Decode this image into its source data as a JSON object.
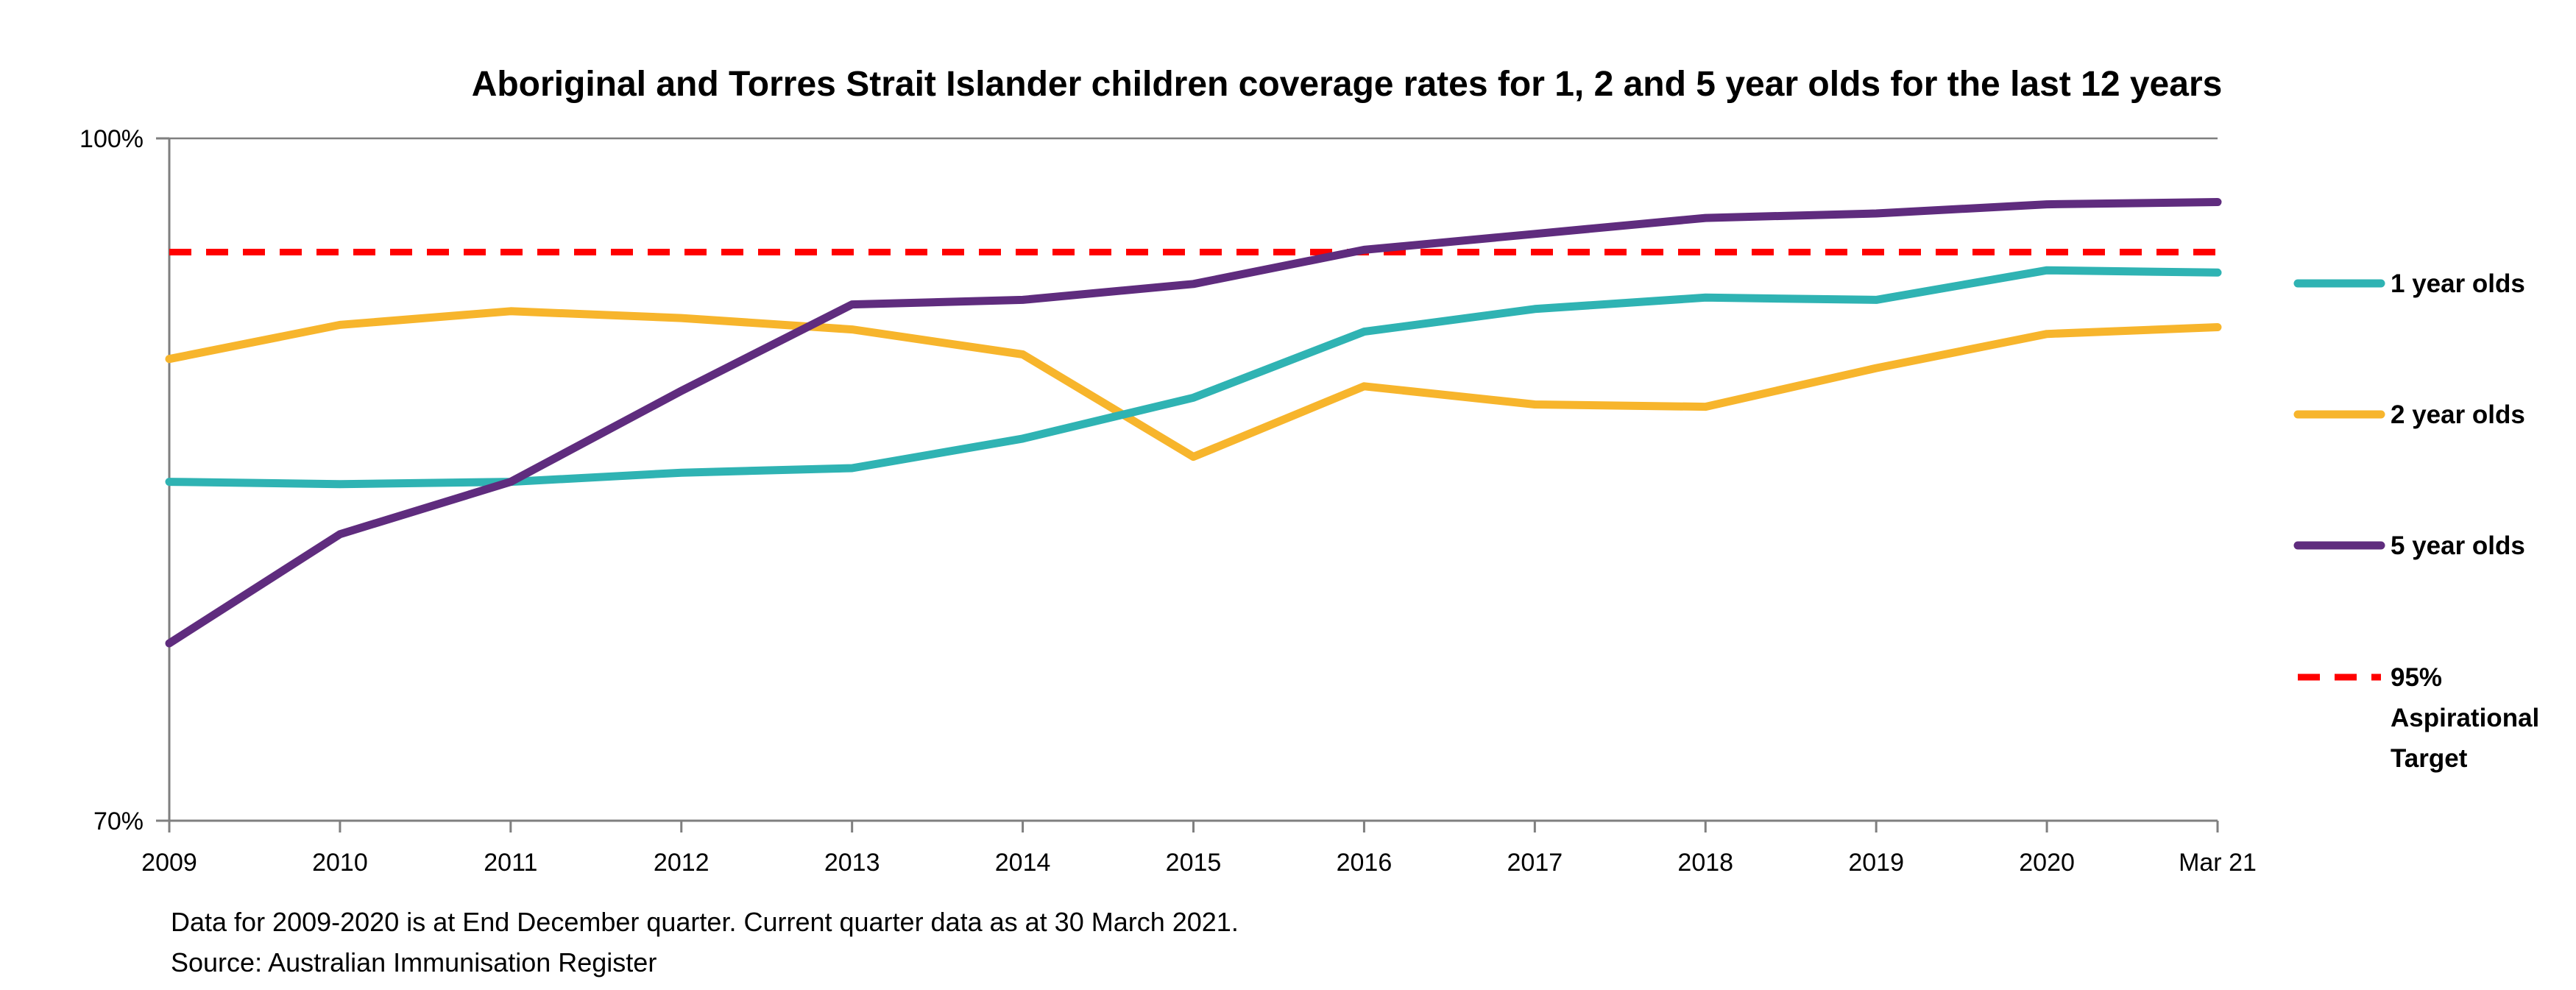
{
  "chart_data": {
    "type": "line",
    "title": "Aboriginal and Torres Strait Islander children coverage rates  for 1, 2 and 5 year olds for the last 12  years",
    "xlabel": "",
    "ylabel": "",
    "categories": [
      "2009",
      "2010",
      "2011",
      "2012",
      "2013",
      "2014",
      "2015",
      "2016",
      "2017",
      "2018",
      "2019",
      "2020",
      "Mar 21"
    ],
    "ylim": [
      70,
      100
    ],
    "y_tick_labels": [
      "100%",
      "70%"
    ],
    "grid": false,
    "legend_position": "right",
    "series": [
      {
        "name": "1 year olds",
        "color": "#2fb3b3",
        "style": "solid",
        "values": [
          84.9,
          84.8,
          84.9,
          85.3,
          85.5,
          86.8,
          88.6,
          91.5,
          92.5,
          93.0,
          92.9,
          94.2,
          94.1
        ]
      },
      {
        "name": "2 year olds",
        "color": "#f7b52c",
        "style": "solid",
        "values": [
          90.3,
          91.8,
          92.4,
          92.1,
          91.6,
          90.5,
          86.0,
          89.1,
          88.3,
          88.2,
          89.9,
          91.4,
          91.7
        ]
      },
      {
        "name": "5 year olds",
        "color": "#5f2c7e",
        "style": "solid",
        "values": [
          77.8,
          82.6,
          84.9,
          88.9,
          92.7,
          92.9,
          93.6,
          95.1,
          95.8,
          96.5,
          96.7,
          97.1,
          97.2
        ]
      },
      {
        "name": "95% Aspirational Target",
        "color": "#ff0000",
        "style": "dashed",
        "values": [
          95,
          95,
          95,
          95,
          95,
          95,
          95,
          95,
          95,
          95,
          95,
          95,
          95
        ]
      }
    ],
    "legend_lines": [
      [
        "1 year olds"
      ],
      [
        "2 year olds"
      ],
      [
        "5 year olds"
      ],
      [
        "95%",
        "Aspirational",
        "Target"
      ]
    ],
    "footnotes": [
      "Data for 2009-2020 is at End December quarter. Current quarter data as at 30 March 2021.",
      "Source: Australian Immunisation Register"
    ]
  }
}
